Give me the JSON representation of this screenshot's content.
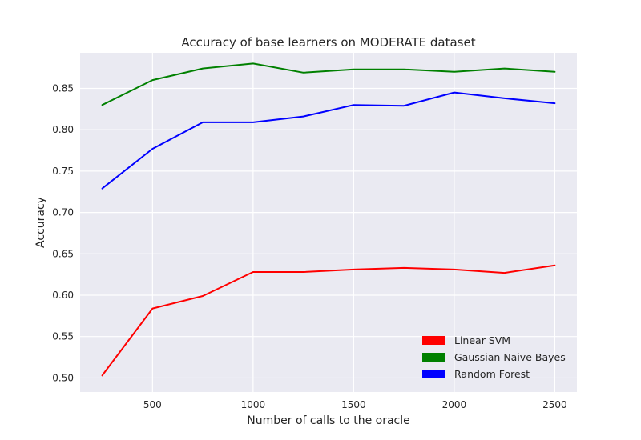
{
  "chart_data": {
    "type": "line",
    "title": "Accuracy of base learners on MODERATE dataset",
    "xlabel": "Number of calls to the oracle",
    "ylabel": "Accuracy",
    "x": [
      250,
      500,
      750,
      1000,
      1250,
      1500,
      1750,
      2000,
      2250,
      2500
    ],
    "xlim": [
      140,
      2610
    ],
    "ylim": [
      0.483,
      0.893
    ],
    "xticks": [
      500,
      1000,
      1500,
      2000,
      2500
    ],
    "xtick_labels": [
      "500",
      "1000",
      "1500",
      "2000",
      "2500"
    ],
    "yticks": [
      0.5,
      0.55,
      0.6,
      0.65,
      0.7,
      0.75,
      0.8,
      0.85
    ],
    "ytick_labels": [
      "0.50",
      "0.55",
      "0.60",
      "0.65",
      "0.70",
      "0.75",
      "0.80",
      "0.85"
    ],
    "grid": true,
    "legend_position": "lower-right",
    "series": [
      {
        "name": "Linear SVM",
        "color": "#ff0000",
        "values": [
          0.503,
          0.584,
          0.599,
          0.628,
          0.628,
          0.631,
          0.633,
          0.631,
          0.627,
          0.636
        ]
      },
      {
        "name": "Gaussian Naive Bayes",
        "color": "#008000",
        "values": [
          0.83,
          0.86,
          0.874,
          0.88,
          0.869,
          0.873,
          0.873,
          0.87,
          0.874,
          0.87
        ]
      },
      {
        "name": "Random Forest",
        "color": "#0000ff",
        "values": [
          0.729,
          0.777,
          0.809,
          0.809,
          0.816,
          0.83,
          0.829,
          0.845,
          0.838,
          0.832
        ]
      }
    ],
    "background_color": "#eaeaf2",
    "grid_color": "#ffffff"
  }
}
